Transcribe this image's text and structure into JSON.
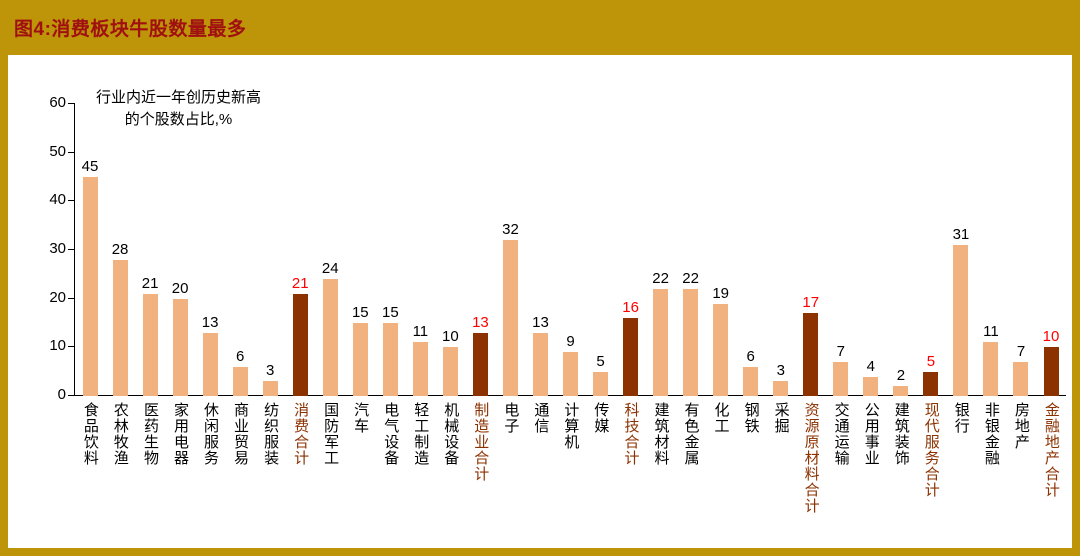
{
  "header": {
    "title": "图4:消费板块牛股数量最多"
  },
  "chart_data": {
    "type": "bar",
    "title": "图4:消费板块牛股数量最多",
    "annotation": "行业内近一年创历史新高\n的个股数占比,%",
    "categories": [
      "食品饮料",
      "农林牧渔",
      "医药生物",
      "家用电器",
      "休闲服务",
      "商业贸易",
      "纺织服装",
      "消费合计",
      "国防军工",
      "汽车",
      "电气设备",
      "轻工制造",
      "机械设备",
      "制造业合计",
      "电子",
      "通信",
      "计算机",
      "传媒",
      "科技合计",
      "建筑材料",
      "有色金属",
      "化工",
      "钢铁",
      "采掘",
      "资源原材料合计",
      "交通运输",
      "公用事业",
      "建筑装饰",
      "现代服务合计",
      "银行",
      "非银金融",
      "房地产",
      "金融地产合计"
    ],
    "values": [
      45,
      28,
      21,
      20,
      13,
      6,
      3,
      21,
      24,
      15,
      15,
      11,
      10,
      13,
      32,
      13,
      9,
      5,
      16,
      22,
      22,
      19,
      6,
      3,
      17,
      7,
      4,
      2,
      5,
      31,
      11,
      7,
      10
    ],
    "highlight_indices": [
      7,
      13,
      18,
      24,
      28,
      32
    ],
    "yticks": [
      0,
      10,
      20,
      30,
      40,
      50,
      60
    ],
    "ylim": [
      0,
      60
    ],
    "xlabel": "",
    "ylabel": "",
    "grid": false,
    "legend": "none"
  },
  "colors": {
    "frame": "#BE9409",
    "title": "#A01010",
    "bar_light": "#F2B27F",
    "bar_dark": "#8C3100",
    "value_label": "#000000",
    "value_label_highlight": "#FF0000",
    "category_label": "#000000",
    "category_label_highlight": "#8C3100",
    "axis": "#000000",
    "plot_background": "#FFFFFF"
  }
}
